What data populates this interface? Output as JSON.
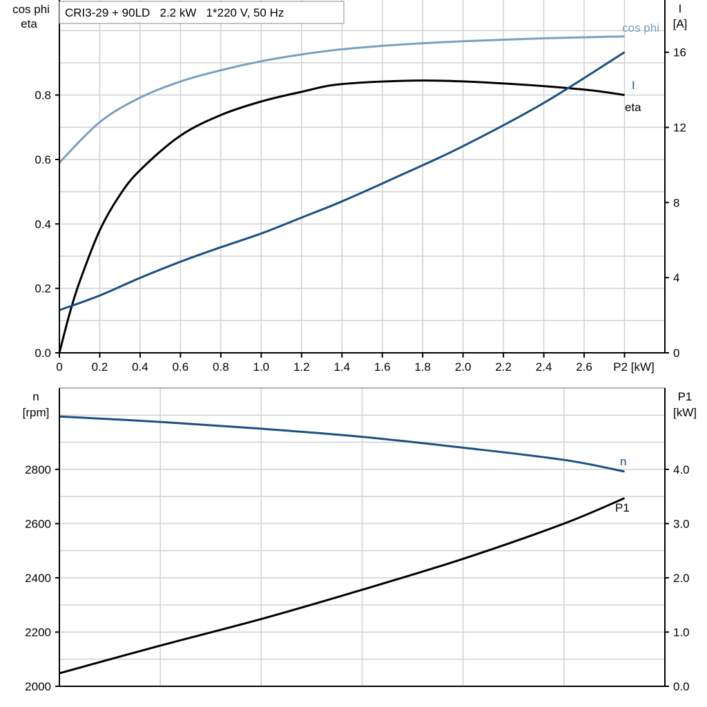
{
  "chart_data": [
    {
      "type": "line",
      "title": "CRI3-29 + 90LD   2.2 kW   1*220 V, 50 Hz",
      "xlabel": "P2 [kW]",
      "ylabel_left": [
        "cos phi",
        "eta"
      ],
      "ylabel_right": [
        "I",
        "[A]"
      ],
      "xlim": [
        0,
        3.0
      ],
      "ylim_left": [
        0,
        1.095
      ],
      "ylim_right": [
        0,
        18.78
      ],
      "x_ticks": [
        "0",
        "0.2",
        "0.4",
        "0.6",
        "0.8",
        "1.0",
        "1.2",
        "1.4",
        "1.6",
        "1.8",
        "2.0",
        "2.2",
        "2.4",
        "2.6"
      ],
      "y_ticks_left": [
        "0.0",
        "0.2",
        "0.4",
        "0.6",
        "0.8"
      ],
      "y_ticks_right": [
        "0",
        "4",
        "8",
        "12",
        "16"
      ],
      "grid": true,
      "series": [
        {
          "name": "cos phi",
          "axis": "left",
          "color": "#7a9fc2",
          "x": [
            0,
            0.2,
            0.4,
            0.6,
            0.8,
            1.0,
            1.2,
            1.4,
            1.7,
            2.0,
            2.4,
            2.8
          ],
          "y": [
            0.59,
            0.716,
            0.792,
            0.842,
            0.877,
            0.905,
            0.926,
            0.942,
            0.957,
            0.967,
            0.976,
            0.982
          ]
        },
        {
          "name": "eta",
          "axis": "left",
          "color": "#000000",
          "x": [
            0,
            0.05,
            0.1,
            0.2,
            0.3,
            0.4,
            0.6,
            0.8,
            1.0,
            1.2,
            1.4,
            1.8,
            2.2,
            2.6,
            2.8
          ],
          "y": [
            0,
            0.12,
            0.22,
            0.38,
            0.49,
            0.567,
            0.674,
            0.738,
            0.78,
            0.81,
            0.834,
            0.845,
            0.836,
            0.817,
            0.8
          ]
        },
        {
          "name": "I",
          "axis": "right",
          "color": "#1a4f85",
          "x": [
            0,
            0.2,
            0.4,
            0.6,
            0.8,
            1.0,
            1.2,
            1.4,
            1.7,
            2.0,
            2.4,
            2.8
          ],
          "y": [
            2.27,
            3.05,
            3.99,
            4.85,
            5.62,
            6.35,
            7.2,
            8.06,
            9.5,
            11.0,
            13.3,
            16.0
          ]
        }
      ]
    },
    {
      "type": "line",
      "xlim": [
        0,
        3.0
      ],
      "ylabel_left": [
        "n",
        "[rpm]"
      ],
      "ylabel_right": [
        "P1",
        "[kW]"
      ],
      "ylim_left": [
        2000,
        3100
      ],
      "ylim_right": [
        0,
        5.5
      ],
      "y_ticks_left": [
        "2000",
        "2200",
        "2400",
        "2600",
        "2800"
      ],
      "y_ticks_right": [
        "0.0",
        "1.0",
        "2.0",
        "3.0",
        "4.0"
      ],
      "grid": true,
      "series": [
        {
          "name": "n",
          "axis": "left",
          "color": "#1a4f85",
          "x": [
            0,
            0.5,
            1.0,
            1.5,
            2.0,
            2.5,
            2.8
          ],
          "y": [
            2995,
            2975,
            2950,
            2920,
            2880,
            2835,
            2792
          ]
        },
        {
          "name": "P1",
          "axis": "right",
          "color": "#000000",
          "x": [
            0,
            0.5,
            1.0,
            1.5,
            2.0,
            2.5,
            2.8
          ],
          "y": [
            0.24,
            0.75,
            1.24,
            1.78,
            2.35,
            3.0,
            3.47
          ]
        }
      ]
    }
  ]
}
